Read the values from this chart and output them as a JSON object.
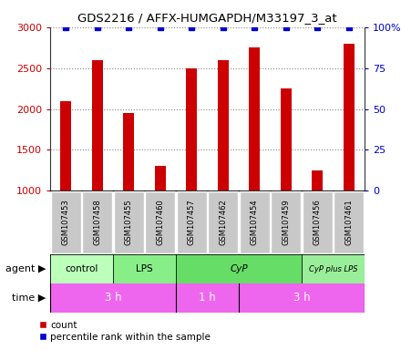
{
  "title": "GDS2216 / AFFX-HUMGAPDH/M33197_3_at",
  "samples": [
    "GSM107453",
    "GSM107458",
    "GSM107455",
    "GSM107460",
    "GSM107457",
    "GSM107462",
    "GSM107454",
    "GSM107459",
    "GSM107456",
    "GSM107461"
  ],
  "counts": [
    2100,
    2600,
    1950,
    1300,
    2500,
    2600,
    2750,
    2250,
    1250,
    2800
  ],
  "percentile_ranks": [
    100,
    100,
    100,
    100,
    100,
    100,
    100,
    100,
    100,
    100
  ],
  "bar_color": "#CC0000",
  "dot_color": "#0000CC",
  "ylim_left": [
    1000,
    3000
  ],
  "ylim_right": [
    0,
    100
  ],
  "yticks_left": [
    1000,
    1500,
    2000,
    2500,
    3000
  ],
  "yticks_right": [
    0,
    25,
    50,
    75,
    100
  ],
  "ytick_labels_right": [
    "0",
    "25",
    "50",
    "75",
    "100%"
  ],
  "agent_groups": [
    {
      "label": "control",
      "start": 0,
      "end": 2,
      "color": "#BBFFBB"
    },
    {
      "label": "LPS",
      "start": 2,
      "end": 4,
      "color": "#88EE88"
    },
    {
      "label": "CyP",
      "start": 4,
      "end": 8,
      "color": "#66DD66"
    },
    {
      "label": "CyP plus LPS",
      "start": 8,
      "end": 10,
      "color": "#99EE99"
    }
  ],
  "time_groups": [
    {
      "label": "3 h",
      "start": 0,
      "end": 4,
      "color": "#EE66EE"
    },
    {
      "label": "1 h",
      "start": 4,
      "end": 6,
      "color": "#EE66EE"
    },
    {
      "label": "3 h",
      "start": 6,
      "end": 10,
      "color": "#EE66EE"
    }
  ],
  "legend_count_label": "count",
  "legend_percentile_label": "percentile rank within the sample",
  "agent_label": "agent",
  "time_label": "time",
  "grid_color": "#888888",
  "bar_width": 0.35,
  "tick_label_color_left": "#CC0000",
  "tick_label_color_right": "#0000CC",
  "sample_box_color": "#C8C8C8",
  "background_color": "#FFFFFF"
}
